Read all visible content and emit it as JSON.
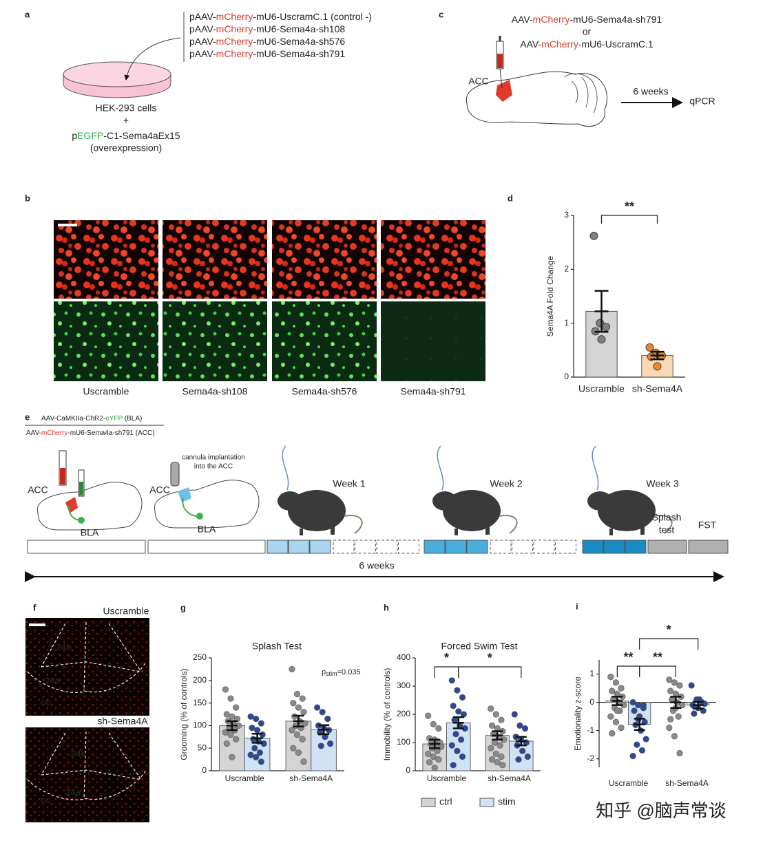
{
  "panels": {
    "a": {
      "label": "a",
      "constructs": [
        {
          "parts": [
            "pAAV-",
            "mCherry",
            "-mU6-UscramC.1 (control -)"
          ],
          "color": "#e0392b"
        },
        {
          "parts": [
            "pAAV-",
            "mCherry",
            "-mU6-Sema4a-sh108"
          ],
          "color": "#e0392b"
        },
        {
          "parts": [
            "pAAV-",
            "mCherry",
            "-mU6-Sema4a-sh576"
          ],
          "color": "#e0392b"
        },
        {
          "parts": [
            "pAAV-",
            "mCherry",
            "-mU6-Sema4a-sh791"
          ],
          "color": "#e0392b"
        }
      ],
      "cells": "HEK-293 cells",
      "plus": "+",
      "plasmid": {
        "parts": [
          "p",
          "EGFP",
          "-C1-Sema4aEx15"
        ],
        "color": "#2ea84a"
      },
      "note": "(overexpression)"
    },
    "b": {
      "label": "b",
      "columns": [
        "Uscramble",
        "Sema4a-sh108",
        "Sema4a-sh576",
        "Sema4a-sh791"
      ]
    },
    "c": {
      "label": "c",
      "constructs": [
        {
          "parts": [
            "AAV-",
            "mCherry",
            "-mU6-Sema4a-sh791"
          ],
          "color": "#e0392b"
        },
        {
          "parts": [
            "AAV-",
            "mCherry",
            "-mU6-UscramC.1"
          ],
          "color": "#e0392b"
        }
      ],
      "or": "or",
      "region": "ACC",
      "interval": "6 weeks",
      "readout": "qPCR"
    },
    "e": {
      "label": "e",
      "constructs": [
        {
          "parts": [
            "AAV-CaMKIIa-ChR2-",
            "eYFP",
            " (BLA)"
          ],
          "color": "#2ea84a"
        },
        {
          "parts": [
            "AAV-",
            "mCherry",
            "-mU6-Sema4a-sh791 (ACC)"
          ],
          "color": "#e0392b"
        }
      ],
      "step1": {
        "acc": "ACC",
        "bla": "BLA"
      },
      "step2": {
        "note": [
          "cannula implantation",
          "into the ACC"
        ],
        "acc": "ACC",
        "bla": "BLA"
      },
      "weeks": [
        "Week 1",
        "Week 2",
        "Week 3"
      ],
      "splash": [
        "Splash",
        "test"
      ],
      "fst": "FST",
      "duration": "6 weeks"
    },
    "f": {
      "label": "f",
      "images": [
        {
          "title": "Uscramble",
          "regions": [
            "24b",
            "24a",
            "cc"
          ]
        },
        {
          "title": "sh-Sema4A",
          "regions": [
            "24b",
            "24a",
            "cc"
          ]
        }
      ]
    }
  },
  "watermark": "知乎 @脑声常谈",
  "chart_data": [
    {
      "label": "d",
      "type": "bar",
      "ylabel": "Sema4A Fold Change",
      "categories": [
        "Uscramble",
        "sh-Sema4A"
      ],
      "values": [
        1.22,
        0.4
      ],
      "errors": [
        0.38,
        0.07
      ],
      "colors": [
        "#d4d4d4",
        "#fbd8b4"
      ],
      "point_colors": [
        "#7f7f7f",
        "#e8892c"
      ],
      "points": [
        [
          2.62,
          1.0,
          0.93,
          0.85,
          0.7
        ],
        [
          0.55,
          0.45,
          0.4,
          0.38,
          0.2
        ]
      ],
      "ylim": [
        0,
        3
      ],
      "yticks": [
        0,
        1,
        2,
        3
      ],
      "significance": [
        {
          "text": "**",
          "pair": [
            [
              0
            ],
            [
              1
            ]
          ]
        }
      ]
    },
    {
      "label": "g",
      "type": "grouped-bar",
      "title": "Splash Test",
      "ylabel": "Grooming (% of controls)",
      "categories": [
        "Uscramble",
        "sh-Sema4A"
      ],
      "series": [
        {
          "name": "ctrl",
          "color": "#d4d4d4",
          "point_color": "#8a8a8a",
          "values": [
            100,
            110
          ],
          "errors": [
            10,
            12
          ],
          "points": [
            [
              180,
              160,
              140,
              125,
              120,
              115,
              110,
              105,
              100,
              95,
              90,
              85,
              80,
              70,
              60,
              30
            ],
            [
              225,
              170,
              160,
              150,
              140,
              130,
              120,
              110,
              105,
              100,
              95,
              90,
              80,
              70,
              50,
              40,
              20
            ]
          ]
        },
        {
          "name": "stim",
          "color": "#cfe2f6",
          "point_color": "#2c4a94",
          "values": [
            72,
            91
          ],
          "errors": [
            10,
            10
          ],
          "points": [
            [
              120,
              115,
              105,
              95,
              90,
              80,
              70,
              65,
              60,
              50,
              40,
              35,
              30,
              20
            ],
            [
              140,
              130,
              115,
              100,
              95,
              90,
              85,
              75,
              60,
              55
            ]
          ]
        }
      ],
      "ylim": [
        0,
        250
      ],
      "yticks": [
        0,
        50,
        100,
        150,
        200,
        250
      ],
      "annotation": [
        "p",
        "stim",
        "=0.035"
      ]
    },
    {
      "label": "h",
      "type": "grouped-bar",
      "title": "Forced Swim Test",
      "ylabel": "Immobility (% of controls)",
      "categories": [
        "Uscramble",
        "sh-Sema4A"
      ],
      "series": [
        {
          "name": "ctrl",
          "color": "#d4d4d4",
          "point_color": "#8a8a8a",
          "values": [
            95,
            125
          ],
          "errors": [
            15,
            15
          ],
          "points": [
            [
              195,
              165,
              150,
              115,
              110,
              100,
              95,
              90,
              85,
              80,
              70,
              60,
              50,
              40,
              30,
              10
            ],
            [
              220,
              200,
              180,
              160,
              150,
              140,
              130,
              120,
              110,
              100,
              90,
              80,
              60,
              50,
              40,
              30,
              20
            ]
          ]
        },
        {
          "name": "stim",
          "color": "#cfe2f6",
          "point_color": "#2c4a94",
          "values": [
            170,
            105
          ],
          "errors": [
            20,
            15
          ],
          "points": [
            [
              320,
              285,
              260,
              230,
              210,
              200,
              180,
              160,
              150,
              130,
              110,
              90,
              70,
              50,
              20
            ],
            [
              200,
              160,
              150,
              120,
              110,
              100,
              90,
              70,
              50,
              40
            ]
          ]
        }
      ],
      "ylim": [
        0,
        400
      ],
      "yticks": [
        0,
        100,
        200,
        300,
        400
      ],
      "legend": "bottom",
      "significance": [
        {
          "text": "*",
          "pair": [
            [
              0,
              0
            ],
            [
              0,
              1
            ]
          ]
        },
        {
          "text": "*",
          "pair": [
            [
              0,
              1
            ],
            [
              1,
              1
            ]
          ]
        }
      ]
    },
    {
      "label": "i",
      "type": "grouped-bar",
      "ylabel": "Emotionality z-score",
      "categories": [
        "Uscramble",
        "sh-Sema4A"
      ],
      "series": [
        {
          "name": "ctrl",
          "color": "#d4d4d4",
          "point_color": "#8a8a8a",
          "values": [
            0.05,
            0.0
          ],
          "errors": [
            0.15,
            0.2
          ],
          "points": [
            [
              0.9,
              0.7,
              0.5,
              0.4,
              0.3,
              0.2,
              0.1,
              0,
              -0.1,
              -0.2,
              -0.3,
              -0.5,
              -0.7,
              -0.9,
              -1.1,
              -0.3
            ],
            [
              0.8,
              0.7,
              0.6,
              0.4,
              0.3,
              0.2,
              0.1,
              0,
              -0.1,
              -0.3,
              -0.5,
              -0.9,
              -1.2,
              -1.8,
              -0.6,
              -0.2
            ]
          ]
        },
        {
          "name": "stim",
          "color": "#cfe2f6",
          "point_color": "#2c4a94",
          "values": [
            -0.78,
            -0.1
          ],
          "errors": [
            0.2,
            0.12
          ],
          "points": [
            [
              0,
              -0.1,
              -0.2,
              -0.3,
              -0.5,
              -0.7,
              -0.8,
              -1.0,
              -1.3,
              -1.5,
              -1.7,
              -1.9,
              -0.6,
              -0.1
            ],
            [
              0.6,
              0.1,
              0,
              -0.1,
              -0.2,
              -0.3,
              -0.4,
              0.1,
              -0.05
            ]
          ]
        }
      ],
      "ylim": [
        -2.3,
        1.5
      ],
      "yticks": [
        -2,
        -1,
        0,
        1
      ],
      "significance": [
        {
          "text": "**",
          "pair": [
            [
              0,
              0
            ],
            [
              0,
              1
            ]
          ]
        },
        {
          "text": "**",
          "pair": [
            [
              0,
              1
            ],
            [
              1,
              0
            ]
          ]
        },
        {
          "text": "*",
          "pair": [
            [
              0,
              1
            ],
            [
              1,
              1
            ]
          ]
        }
      ]
    }
  ]
}
